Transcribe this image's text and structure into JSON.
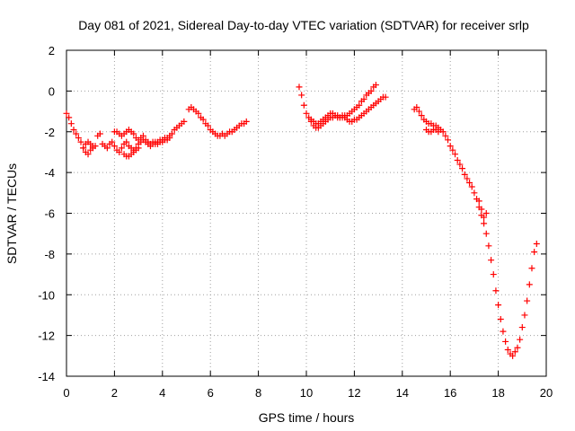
{
  "chart_data": {
    "type": "scatter",
    "title": "Day 081 of 2021, Sidereal Day-to-day VTEC variation (SDTVAR) for receiver srlp",
    "xlabel": "GPS time / hours",
    "ylabel": "SDTVAR / TECUs",
    "xlim": [
      0,
      20
    ],
    "ylim": [
      -14,
      2
    ],
    "xticks": [
      0,
      2,
      4,
      6,
      8,
      10,
      12,
      14,
      16,
      18,
      20
    ],
    "yticks": [
      2,
      0,
      -2,
      -4,
      -6,
      -8,
      -10,
      -12,
      -14
    ],
    "grid": true,
    "marker": "plus",
    "color": "#ff0000",
    "series": [
      {
        "name": "SDTVAR",
        "segments": [
          {
            "x": [
              0.0,
              0.1,
              0.2,
              0.3,
              0.4,
              0.5,
              0.6,
              0.7,
              0.8,
              0.9,
              1.0,
              1.1
            ],
            "y": [
              -1.1,
              -1.3,
              -1.6,
              -1.9,
              -2.1,
              -2.3,
              -2.5,
              -2.8,
              -3.0,
              -3.1,
              -2.9,
              -2.7
            ]
          },
          {
            "x": [
              0.7,
              0.8,
              0.9,
              1.0,
              1.1,
              1.2,
              1.3,
              1.4,
              1.5,
              1.6,
              1.7,
              1.8,
              1.9,
              2.0,
              2.1,
              2.2,
              2.3,
              2.4,
              2.5,
              2.6,
              2.7,
              2.8,
              2.9,
              3.0
            ],
            "y": [
              -2.8,
              -2.6,
              -2.5,
              -2.6,
              -2.8,
              -2.7,
              -2.2,
              -2.1,
              -2.6,
              -2.7,
              -2.8,
              -2.6,
              -2.5,
              -2.7,
              -2.9,
              -3.0,
              -2.8,
              -2.6,
              -2.5,
              -2.7,
              -2.8,
              -2.9,
              -2.9,
              -2.8
            ]
          },
          {
            "x": [
              2.0,
              2.1,
              2.2,
              2.3,
              2.4,
              2.5,
              2.6,
              2.7,
              2.8,
              2.9,
              3.0,
              3.1,
              3.2,
              3.3,
              3.4,
              3.5,
              3.6,
              3.7,
              3.8,
              3.9,
              4.0,
              4.1,
              4.2,
              4.3,
              4.4,
              4.5,
              4.6,
              4.7,
              4.8,
              4.9
            ],
            "y": [
              -2.0,
              -2.0,
              -2.1,
              -2.2,
              -2.1,
              -2.0,
              -1.9,
              -2.0,
              -2.1,
              -2.3,
              -2.4,
              -2.3,
              -2.2,
              -2.4,
              -2.5,
              -2.6,
              -2.5,
              -2.6,
              -2.5,
              -2.4,
              -2.5,
              -2.4,
              -2.3,
              -2.2,
              -2.1,
              -1.9,
              -1.8,
              -1.7,
              -1.6,
              -1.5
            ]
          },
          {
            "x": [
              2.4,
              2.5,
              2.6,
              2.7,
              2.8,
              2.9,
              3.0,
              3.1,
              3.2,
              3.3,
              3.4,
              3.5,
              3.6,
              3.7,
              3.8,
              3.9,
              4.0,
              4.1,
              4.2,
              4.3
            ],
            "y": [
              -3.1,
              -3.2,
              -3.2,
              -3.1,
              -3.0,
              -2.8,
              -2.6,
              -2.5,
              -2.4,
              -2.5,
              -2.6,
              -2.7,
              -2.6,
              -2.5,
              -2.6,
              -2.5,
              -2.4,
              -2.3,
              -2.4,
              -2.3
            ]
          },
          {
            "x": [
              5.1,
              5.2,
              5.3,
              5.4,
              5.5,
              5.6,
              5.7,
              5.8,
              5.9,
              6.0,
              6.1,
              6.2,
              6.3,
              6.4,
              6.5,
              6.6,
              6.7,
              6.8,
              6.9,
              7.0,
              7.1,
              7.2,
              7.3,
              7.4,
              7.5
            ],
            "y": [
              -0.9,
              -0.8,
              -0.9,
              -1.0,
              -1.1,
              -1.3,
              -1.4,
              -1.6,
              -1.7,
              -1.9,
              -2.0,
              -2.1,
              -2.2,
              -2.2,
              -2.1,
              -2.2,
              -2.1,
              -2.0,
              -2.0,
              -1.9,
              -1.8,
              -1.7,
              -1.6,
              -1.6,
              -1.5
            ]
          },
          {
            "x": [
              9.7,
              9.8,
              9.9,
              10.0,
              10.1,
              10.2,
              10.3,
              10.4,
              10.5,
              10.6,
              10.7,
              10.8,
              10.9,
              11.0,
              11.1,
              11.2,
              11.3,
              11.4,
              11.5,
              11.6,
              11.7,
              11.8,
              11.9,
              12.0,
              12.1,
              12.2,
              12.3,
              12.4,
              12.5,
              12.6,
              12.7,
              12.8,
              12.9
            ],
            "y": [
              0.2,
              -0.2,
              -0.7,
              -1.1,
              -1.3,
              -1.4,
              -1.5,
              -1.6,
              -1.6,
              -1.5,
              -1.4,
              -1.3,
              -1.2,
              -1.1,
              -1.1,
              -1.2,
              -1.2,
              -1.3,
              -1.3,
              -1.2,
              -1.2,
              -1.1,
              -1.0,
              -0.9,
              -0.8,
              -0.7,
              -0.5,
              -0.4,
              -0.2,
              -0.1,
              0.0,
              0.2,
              0.3
            ]
          },
          {
            "x": [
              10.2,
              10.3,
              10.4,
              10.5,
              10.6,
              10.7,
              10.8,
              10.9,
              11.0,
              11.1,
              11.2,
              11.3,
              11.4,
              11.5,
              11.6,
              11.7,
              11.8,
              11.9,
              12.0,
              12.1,
              12.2,
              12.3,
              12.4,
              12.5,
              12.6,
              12.7,
              12.8,
              12.9,
              13.0,
              13.1,
              13.2,
              13.3
            ],
            "y": [
              -1.5,
              -1.7,
              -1.8,
              -1.8,
              -1.7,
              -1.6,
              -1.5,
              -1.4,
              -1.3,
              -1.3,
              -1.2,
              -1.3,
              -1.3,
              -1.2,
              -1.3,
              -1.4,
              -1.5,
              -1.5,
              -1.4,
              -1.4,
              -1.3,
              -1.2,
              -1.1,
              -1.0,
              -0.9,
              -0.8,
              -0.7,
              -0.6,
              -0.5,
              -0.4,
              -0.3,
              -0.3
            ]
          },
          {
            "x": [
              14.5,
              14.6,
              14.7,
              14.8,
              14.9,
              15.0,
              15.1,
              15.2,
              15.3,
              15.4,
              15.5,
              15.6,
              15.7,
              15.8,
              15.9,
              16.0,
              16.1,
              16.2,
              16.3,
              16.4,
              16.5,
              16.6,
              16.7,
              16.8,
              16.9
            ],
            "y": [
              -0.9,
              -0.8,
              -1.0,
              -1.2,
              -1.4,
              -1.5,
              -1.6,
              -1.6,
              -1.7,
              -1.7,
              -1.8,
              -1.9,
              -2.0,
              -2.2,
              -2.4,
              -2.7,
              -2.9,
              -3.1,
              -3.4,
              -3.6,
              -3.8,
              -4.1,
              -4.3,
              -4.5,
              -4.7
            ]
          },
          {
            "x": [
              15.0,
              15.1,
              15.2,
              15.3,
              15.4,
              15.5
            ],
            "y": [
              -1.9,
              -2.0,
              -2.0,
              -1.9,
              -1.9,
              -2.0
            ]
          },
          {
            "x": [
              17.0,
              17.1,
              17.2,
              17.3,
              17.4,
              17.5,
              17.6,
              17.7,
              17.8,
              17.9,
              18.0,
              18.1,
              18.2,
              18.3,
              18.4,
              18.5,
              18.6,
              18.7,
              18.8,
              18.9,
              19.0,
              19.1,
              19.2,
              19.3,
              19.4,
              19.5,
              19.6
            ],
            "y": [
              -5.0,
              -5.3,
              -5.7,
              -6.1,
              -6.5,
              -7.0,
              -7.6,
              -8.3,
              -9.0,
              -9.8,
              -10.5,
              -11.2,
              -11.8,
              -12.3,
              -12.7,
              -12.9,
              -13.0,
              -12.8,
              -12.6,
              -12.2,
              -11.6,
              -11.0,
              -10.3,
              -9.5,
              -8.7,
              -7.9,
              -7.5
            ]
          },
          {
            "x": [
              17.2,
              17.3,
              17.4,
              17.5
            ],
            "y": [
              -5.4,
              -5.8,
              -6.2,
              -6.0
            ]
          }
        ]
      }
    ]
  }
}
